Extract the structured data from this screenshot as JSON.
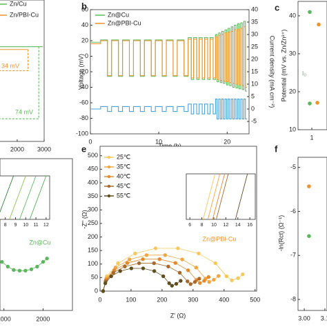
{
  "chart_data": [
    {
      "type": "line",
      "xlim": [
        900,
        3000
      ],
      "xticks": [
        1000,
        2000,
        3000
      ],
      "ylim": [
        0,
        100
      ],
      "series": [
        {
          "name": "Zn/Cu",
          "color": "#5cb85c",
          "x": [
            900,
            2950
          ],
          "values": [
            67,
            67
          ]
        },
        {
          "name": "Zn/PBI-Cu",
          "color": "#f0922b",
          "x": [
            900,
            2400
          ],
          "values": [
            65,
            65
          ]
        },
        {
          "color": "#f0922b",
          "dash": true,
          "x": [
            2400,
            2400,
            900
          ],
          "values": [
            65,
            50,
            50
          ]
        },
        {
          "color": "#5cb85c",
          "dash": true,
          "x": [
            2800,
            2800,
            900
          ],
          "values": [
            67,
            16,
            16
          ]
        }
      ],
      "annotations": [
        "34 mV",
        "74 mV"
      ]
    },
    {
      "type": "line",
      "panel_label": "b",
      "xlabel": "Time (h)",
      "ylabel": "Voltage (mV)",
      "y2label": "Current density (mA cm⁻²)",
      "xlim": [
        0,
        23.2
      ],
      "xticks": [
        0,
        10,
        20
      ],
      "ylim": [
        -100,
        60
      ],
      "yticks": [
        60,
        40,
        20,
        0,
        -20,
        -40,
        -60,
        -80,
        -100
      ],
      "y2lim": [
        -10,
        40
      ],
      "y2ticks": [
        40,
        35,
        30,
        25,
        20,
        15,
        10,
        5,
        0,
        -5
      ],
      "x": [
        0,
        1.5,
        1.5,
        2.5,
        2.5,
        3.1,
        3.1,
        4.1,
        4.1,
        4.7,
        4.7,
        5.7,
        5.7,
        6.3,
        6.3,
        7.3,
        7.3,
        7.9,
        7.9,
        8.9,
        8.9,
        9.5,
        9.5,
        10.5,
        10.5,
        11.1,
        11.1,
        12.1,
        12.1,
        12.7,
        12.7,
        13.7,
        13.7,
        14.3,
        14.3,
        14.75,
        14.75,
        15.1,
        15.1,
        15.55,
        15.55,
        15.9,
        15.9,
        16.35,
        16.35,
        16.7,
        16.7,
        17.15,
        17.15,
        17.5,
        17.5,
        17.95,
        17.95,
        18.3,
        18.3,
        18.53,
        18.53,
        18.76,
        18.76,
        18.99,
        18.99,
        19.22,
        19.22,
        19.45,
        19.45,
        19.68,
        19.68,
        19.91,
        19.91,
        20.14,
        20.14,
        20.37,
        20.37,
        20.6,
        20.6,
        20.83,
        20.83,
        21.06,
        21.06,
        21.29,
        21.29,
        21.52,
        21.52,
        21.75,
        21.75,
        21.98,
        21.98,
        22.21,
        22.21,
        22.44,
        22.44,
        22.67,
        22.67,
        22.9
      ],
      "series": [
        {
          "name": "Zn@Cu",
          "color": "#5cb85c",
          "values": [
            18,
            18,
            21,
            21,
            -26,
            -26,
            21,
            21,
            -26,
            -26,
            21,
            21,
            -26,
            -26,
            21,
            21,
            -26,
            -26,
            21,
            21,
            -26,
            -26,
            21,
            21,
            -26,
            -26,
            21,
            21,
            -26,
            -26,
            21,
            21,
            -26,
            -26,
            24,
            24,
            -30,
            -30,
            24,
            24,
            -30,
            -30,
            24,
            24,
            -30,
            -30,
            24,
            24,
            -30,
            -30,
            24,
            24,
            -30,
            -30,
            28,
            28,
            -33,
            -33,
            30,
            30,
            -34,
            -34,
            32,
            32,
            -35,
            -35,
            34,
            34,
            -37,
            -37,
            36,
            36,
            -38,
            -38,
            38,
            38,
            -40,
            -40,
            40,
            40,
            -41,
            -41,
            42,
            42,
            -42,
            -42,
            43,
            43,
            -43,
            -43,
            45,
            45,
            -45,
            -45
          ]
        },
        {
          "name": "Zn@PBI-Cu",
          "color": "#f0922b",
          "values": [
            16,
            16,
            20,
            20,
            -25,
            -25,
            20,
            20,
            -25,
            -25,
            20,
            20,
            -25,
            -25,
            20,
            20,
            -25,
            -25,
            20,
            20,
            -25,
            -25,
            20,
            20,
            -25,
            -25,
            20,
            20,
            -25,
            -25,
            20,
            20,
            -25,
            -25,
            22,
            22,
            -28,
            -28,
            22,
            22,
            -28,
            -28,
            22,
            22,
            -28,
            -28,
            22,
            22,
            -28,
            -28,
            22,
            22,
            -28,
            -28,
            25,
            25,
            -30,
            -30,
            27,
            27,
            -31,
            -31,
            28,
            28,
            -32,
            -32,
            30,
            30,
            -33,
            -33,
            31,
            31,
            -34,
            -34,
            32,
            32,
            -35,
            -35,
            34,
            34,
            -36,
            -36,
            35,
            35,
            -37,
            -37,
            36,
            36,
            -38,
            -38,
            38,
            38,
            -40,
            -40
          ]
        },
        {
          "color": "#4aa3d8",
          "axis": "y2",
          "values": [
            0,
            0,
            1,
            1,
            -1,
            -1,
            1,
            1,
            -1,
            -1,
            1,
            1,
            -1,
            -1,
            1,
            1,
            -1,
            -1,
            1,
            1,
            -1,
            -1,
            1,
            1,
            -1,
            -1,
            1,
            1,
            -1,
            -1,
            1,
            1,
            -1,
            -1,
            2,
            2,
            -2,
            -2,
            2,
            2,
            -2,
            -2,
            2,
            2,
            -2,
            -2,
            2,
            2,
            -2,
            -2,
            2,
            2,
            -2,
            -2,
            4,
            4,
            -4,
            -4,
            4,
            4,
            -4,
            -4,
            4,
            4,
            -4,
            -4,
            4,
            4,
            -4,
            -4,
            4,
            4,
            -4,
            -4,
            4,
            4,
            -4,
            -4,
            4,
            4,
            -4,
            -4,
            4,
            4,
            -4,
            -4,
            4,
            4,
            -4,
            -4,
            4,
            4,
            -4,
            -4
          ]
        }
      ]
    },
    {
      "type": "scatter",
      "panel_label": "c",
      "ylabel": "Potential (mV vs. Zn/Zn²⁺)",
      "xlim": [
        0,
        2.1
      ],
      "xticks": [
        1
      ],
      "ylim": [
        10,
        43.8
      ],
      "yticks": [
        10,
        20,
        30,
        40
      ],
      "series": [
        {
          "color": "#5cb85c",
          "x": [
            0.85,
            0.85
          ],
          "values": [
            41,
            16.9
          ]
        },
        {
          "color": "#f0922b",
          "x": [
            1.5,
            1.4
          ],
          "values": [
            37.7,
            17.1
          ]
        }
      ],
      "annotations": [
        "I₀"
      ]
    },
    {
      "type": "scatter",
      "lines": true,
      "xlim": [
        900,
        2750
      ],
      "xticks": [
        1000,
        2000
      ],
      "ylim": [
        0,
        4000
      ],
      "series": [
        {
          "color": "#5cb85c",
          "x": [
            950,
            1100,
            1250,
            1400,
            1550,
            1700,
            1850,
            2000,
            2100
          ],
          "values": [
            1280,
            1156,
            1067,
            1049,
            1049,
            1084,
            1156,
            1280,
            1369
          ]
        }
      ],
      "annotations": [
        "Zn@Cu"
      ]
    },
    {
      "type": "line",
      "inset": true,
      "xlim": [
        6.8,
        12.35
      ],
      "xticks": [
        8,
        9,
        10,
        11,
        12
      ],
      "ylim": [
        0,
        10
      ],
      "series": [
        {
          "color": "#2e7d32",
          "x": [
            7.2,
            8.8
          ],
          "values": [
            0,
            10
          ]
        },
        {
          "color": "#8bc34a",
          "x": [
            8.4,
            10
          ],
          "values": [
            0,
            10
          ]
        },
        {
          "color": "#5cb85c",
          "x": [
            9.4,
            11
          ],
          "values": [
            0,
            10
          ]
        },
        {
          "color": "#4caf50",
          "x": [
            10.4,
            12
          ],
          "values": [
            0,
            10
          ]
        }
      ]
    },
    {
      "type": "scatter",
      "lines": true,
      "panel_label": "e",
      "xlabel": "Z' (Ω)",
      "ylabel": "-Z'' (Ω)",
      "xlim": [
        0,
        505
      ],
      "xticks": [
        0,
        100,
        200,
        300,
        400,
        500
      ],
      "ylim": [
        0,
        535
      ],
      "yticks": [
        0,
        50,
        100,
        150,
        200,
        250,
        300,
        350,
        400,
        450,
        500
      ],
      "series": [
        {
          "name": "25℃",
          "color": "#f7c85a",
          "x": [
            10,
            22,
            58,
            113,
            179,
            251,
            318,
            372,
            408,
            425,
            445,
            460
          ],
          "values": [
            0,
            55,
            103,
            139,
            158,
            158,
            139,
            103,
            55,
            40,
            48,
            62
          ]
        },
        {
          "name": "35℃",
          "color": "#f3a640",
          "x": [
            10,
            20,
            50,
            95,
            150,
            210,
            265,
            310,
            340,
            352,
            367,
            382
          ],
          "values": [
            0,
            46,
            87,
            117,
            133,
            133,
            117,
            87,
            46,
            34,
            42,
            56
          ]
        },
        {
          "name": "40℃",
          "color": "#e58a2c",
          "x": [
            10,
            19,
            46,
            88,
            138,
            192,
            243,
            284,
            311,
            322,
            336,
            350
          ],
          "values": [
            0,
            41,
            77,
            104,
            118,
            118,
            104,
            77,
            41,
            30,
            38,
            52
          ]
        },
        {
          "name": "45℃",
          "color": "#a8692a",
          "x": [
            10,
            18,
            43,
            80,
            126,
            174,
            220,
            257,
            282,
            292,
            306,
            320
          ],
          "values": [
            0,
            36,
            68,
            91,
            103,
            103,
            91,
            68,
            36,
            26,
            34,
            46
          ]
        },
        {
          "name": "55℃",
          "color": "#5e4f1f",
          "x": [
            10,
            17,
            36,
            65,
            101,
            139,
            175,
            204,
            223,
            232,
            246,
            260
          ],
          "values": [
            0,
            29,
            55,
            74,
            84,
            84,
            74,
            55,
            29,
            20,
            27,
            38
          ]
        }
      ],
      "annotations": [
        "Zn@PBI-Cu"
      ]
    },
    {
      "type": "line",
      "inset": true,
      "xlim": [
        5.4,
        16.9
      ],
      "xticks": [
        6,
        8,
        10,
        12,
        14,
        16
      ],
      "ylim": [
        0,
        10
      ],
      "series": [
        {
          "color": "#f7c85a",
          "x": [
            8.2,
            10.2
          ],
          "values": [
            0,
            10
          ]
        },
        {
          "color": "#f3a640",
          "x": [
            9,
            11
          ],
          "values": [
            0,
            10
          ]
        },
        {
          "color": "#e58a2c",
          "x": [
            9.8,
            11.8
          ],
          "values": [
            0,
            10
          ]
        },
        {
          "color": "#a8692a",
          "x": [
            10.4,
            12.4
          ],
          "values": [
            0,
            10
          ]
        },
        {
          "color": "#5e4f1f",
          "x": [
            13.6,
            15.6
          ],
          "values": [
            0,
            10
          ]
        }
      ]
    },
    {
      "type": "scatter",
      "panel_label": "f",
      "ylabel": "-ln(Rct) (Ω⁻¹)",
      "xlim": [
        2.97,
        3.11
      ],
      "xticks": [
        {
          "value": 3,
          "label": "3.00"
        },
        3.1
      ],
      "ylim": [
        -8.25,
        -4.77
      ],
      "yticks": [
        -5,
        -6,
        -7,
        -8
      ],
      "series": [
        {
          "color": "#f0922b",
          "x": [
            3.023
          ],
          "values": [
            -5.43
          ]
        },
        {
          "color": "#5cb85c",
          "x": [
            3.023
          ],
          "values": [
            -6.56
          ]
        }
      ]
    }
  ]
}
